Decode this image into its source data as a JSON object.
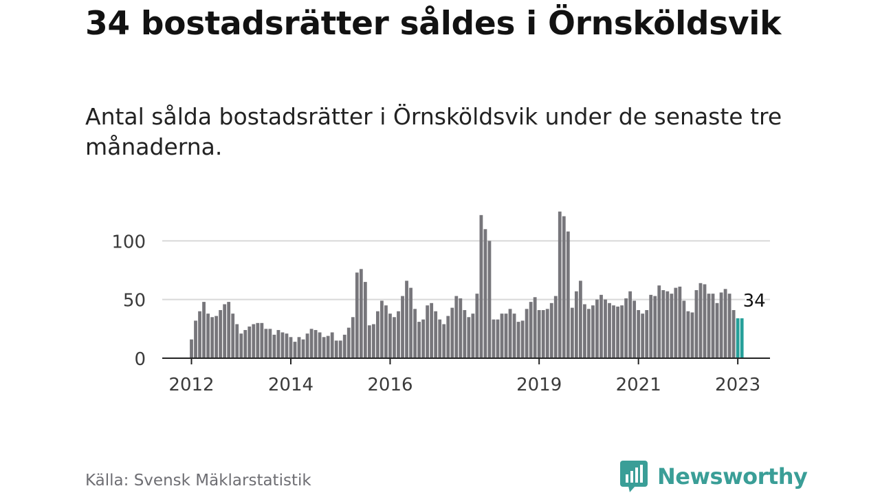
{
  "title": "34 bostadsrätter såldes i Örnsköldsvik",
  "subtitle": "Antal sålda bostadsrätter i Örnsköldsvik under de senaste tre månaderna.",
  "source": "Källa: Svensk Mäklarstatistik",
  "brand": {
    "name": "Newsworthy",
    "color": "#3a9e97",
    "icon": "newsworthy-logo-icon"
  },
  "colors": {
    "bar": "#77767b",
    "highlight": "#26a09a",
    "grid": "#d8d8d8",
    "axis": "#222222"
  },
  "chart_data": {
    "type": "bar",
    "x_start": "2012-01",
    "x_interval": "month",
    "ylim": [
      0,
      126
    ],
    "yticks": [
      0,
      50,
      100
    ],
    "xticks": [
      "2012",
      "2014",
      "2016",
      "2019",
      "2021",
      "2023"
    ],
    "highlight_label": "34",
    "grid": true,
    "values": [
      16,
      32,
      40,
      48,
      38,
      35,
      36,
      41,
      46,
      48,
      38,
      29,
      21,
      24,
      27,
      29,
      30,
      30,
      25,
      25,
      20,
      24,
      22,
      21,
      18,
      14,
      18,
      16,
      21,
      25,
      24,
      22,
      18,
      19,
      22,
      15,
      15,
      20,
      26,
      35,
      73,
      76,
      65,
      28,
      29,
      40,
      49,
      45,
      38,
      35,
      40,
      53,
      66,
      60,
      42,
      31,
      33,
      45,
      47,
      40,
      33,
      29,
      36,
      43,
      53,
      51,
      41,
      35,
      38,
      55,
      122,
      110,
      100,
      33,
      33,
      38,
      38,
      42,
      38,
      31,
      32,
      42,
      48,
      52,
      41,
      41,
      42,
      47,
      53,
      125,
      121,
      108,
      43,
      57,
      66,
      46,
      42,
      45,
      50,
      54,
      50,
      47,
      45,
      44,
      45,
      51,
      57,
      49,
      41,
      38,
      41,
      54,
      53,
      62,
      58,
      57,
      55,
      60,
      61,
      49,
      40,
      39,
      58,
      64,
      63,
      55,
      55,
      47,
      56,
      59,
      55,
      41,
      34,
      34
    ]
  }
}
